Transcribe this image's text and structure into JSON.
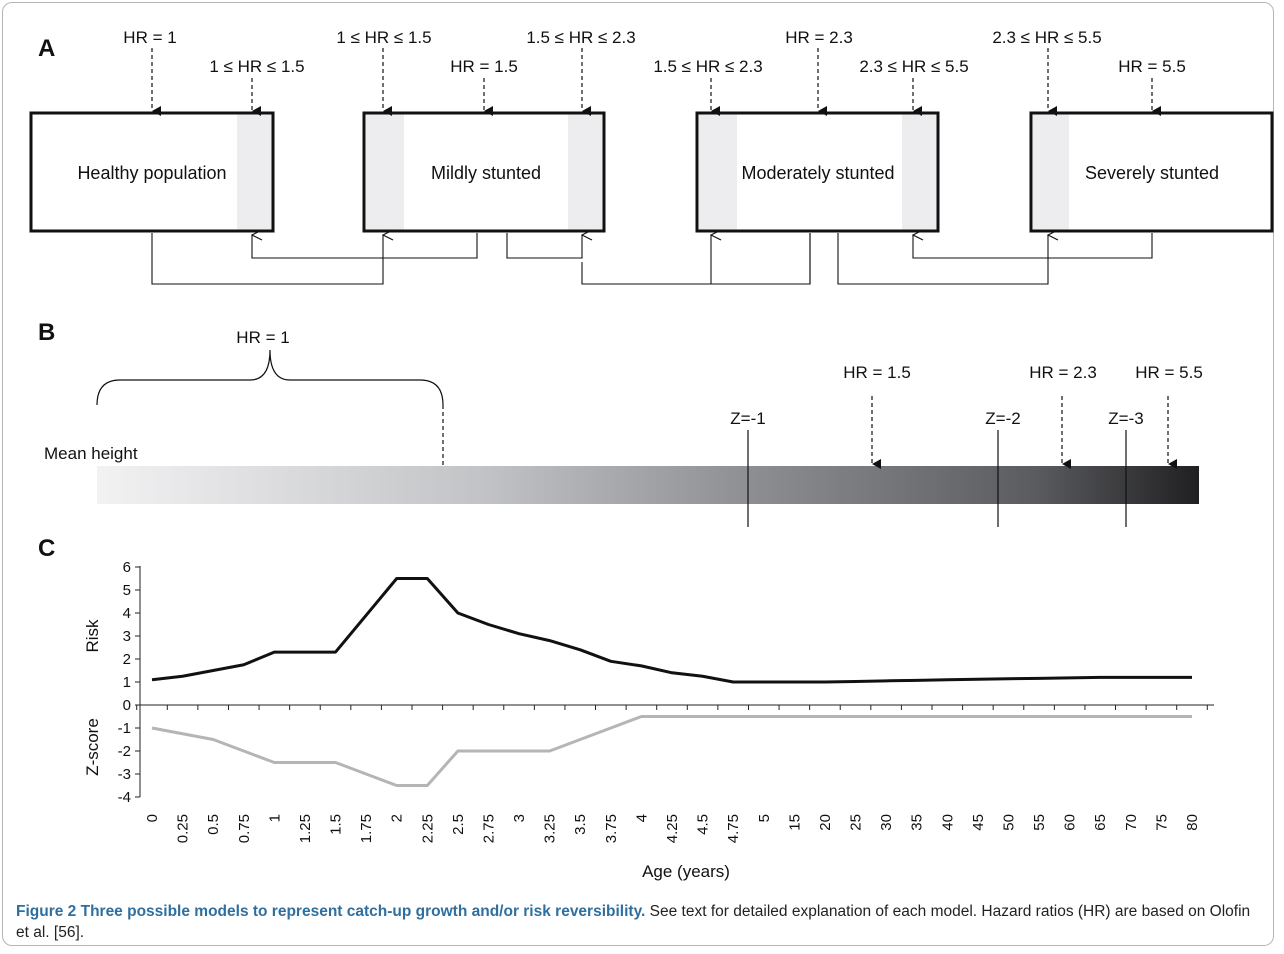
{
  "panels": {
    "a": "A",
    "b": "B",
    "c": "C"
  },
  "panel_a": {
    "boxes": [
      {
        "label": "Healthy population",
        "top_labels": [
          "HR = 1",
          "1 ≤ HR ≤ 1.5"
        ]
      },
      {
        "label": "Mildly stunted",
        "top_labels": [
          "1 ≤ HR ≤ 1.5",
          "HR = 1.5",
          "1.5 ≤ HR ≤ 2.3"
        ]
      },
      {
        "label": "Moderately stunted",
        "top_labels": [
          "1.5 ≤ HR ≤ 2.3",
          "HR = 2.3",
          "2.3 ≤ HR ≤ 5.5"
        ]
      },
      {
        "label": "Severely stunted",
        "top_labels": [
          "2.3 ≤ HR ≤ 5.5",
          "HR = 5.5"
        ]
      }
    ]
  },
  "panel_b": {
    "mean_height": "Mean height",
    "bracket_label": "HR = 1",
    "z_markers": [
      "Z=-1",
      "Z=-2",
      "Z=-3"
    ],
    "hr_markers": [
      "HR = 1.5",
      "HR = 2.3",
      "HR = 5.5"
    ]
  },
  "chart_data": {
    "type": "line",
    "xlabel": "Age (years)",
    "categories": [
      "0",
      "0.25",
      "0.5",
      "0.75",
      "1",
      "1.25",
      "1.5",
      "1.75",
      "2",
      "2.25",
      "2.5",
      "2.75",
      "3",
      "3.25",
      "3.5",
      "3.75",
      "4",
      "4.25",
      "4.5",
      "4.75",
      "5",
      "15",
      "20",
      "25",
      "30",
      "35",
      "40",
      "45",
      "50",
      "55",
      "60",
      "65",
      "70",
      "75",
      "80"
    ],
    "risk": {
      "ylabel": "Risk",
      "ylim": [
        0,
        6
      ],
      "ticks": [
        "0",
        "1",
        "2",
        "3",
        "4",
        "5",
        "6"
      ],
      "color": "#111111",
      "values": [
        1.1,
        1.25,
        1.5,
        1.75,
        2.3,
        2.3,
        2.3,
        3.9,
        5.5,
        5.5,
        4.0,
        3.5,
        3.1,
        2.8,
        2.4,
        1.9,
        1.7,
        1.4,
        1.25,
        1.0,
        1.0,
        1.0,
        1.0,
        1.02,
        1.05,
        1.07,
        1.1,
        1.12,
        1.14,
        1.16,
        1.18,
        1.2,
        1.2,
        1.2,
        1.2
      ]
    },
    "zscore": {
      "ylabel": "Z-score",
      "ylim": [
        -4,
        0
      ],
      "ticks": [
        "-1",
        "-2",
        "-3",
        "-4"
      ],
      "color": "#b5b5b5",
      "values": [
        -1,
        -1.25,
        -1.5,
        -2,
        -2.5,
        -2.5,
        -2.5,
        -3,
        -3.5,
        -3.5,
        -2,
        -2,
        -2,
        -2,
        -1.5,
        -1,
        -0.5,
        -0.5,
        -0.5,
        -0.5,
        -0.5,
        -0.5,
        -0.5,
        -0.5,
        -0.5,
        -0.5,
        -0.5,
        -0.5,
        -0.5,
        -0.5,
        -0.5,
        -0.5,
        -0.5,
        -0.5,
        -0.5
      ]
    }
  },
  "caption": {
    "title": "Figure 2 Three possible models to represent catch-up growth and/or risk reversibility.",
    "body": " See text for detailed explanation of each model. Hazard ratios (HR) are based on Olofin et al. [56]."
  }
}
